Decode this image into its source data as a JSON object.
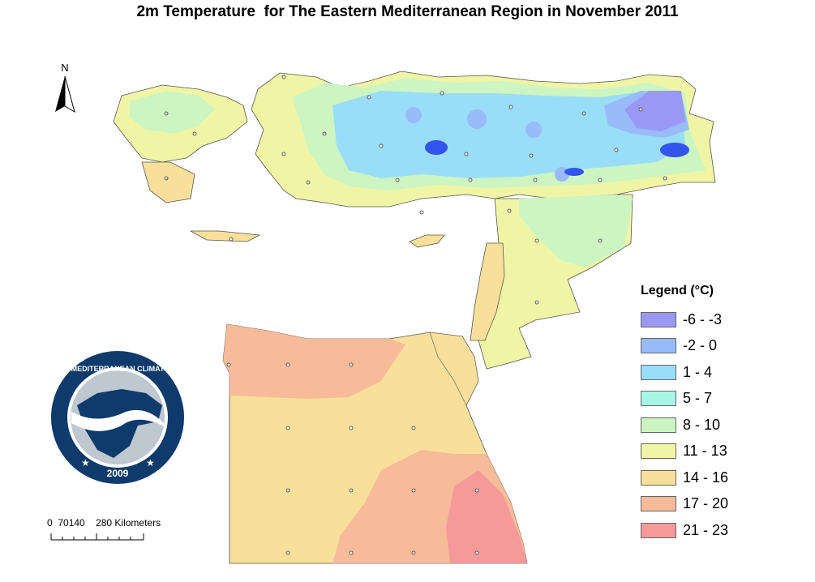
{
  "title": "2m Temperature  for The Eastern Mediterranean Region in November 2011",
  "north_arrow": {
    "label": "N",
    "icon": "north-arrow-icon"
  },
  "scale_bar": {
    "text": "0  70140    280 Kilometers"
  },
  "legend": {
    "title": "Legend (°C)",
    "items": [
      {
        "label": "-6 - -3",
        "color": "#9999f5"
      },
      {
        "label": "-2 - 0",
        "color": "#99bbf8"
      },
      {
        "label": "1 - 4",
        "color": "#99ddf8"
      },
      {
        "label": "5 - 7",
        "color": "#a6f5e6"
      },
      {
        "label": "8 - 10",
        "color": "#ccf5c2"
      },
      {
        "label": "11 - 13",
        "color": "#f0f5a6"
      },
      {
        "label": "14 - 16",
        "color": "#f8e09a"
      },
      {
        "label": "17 - 20",
        "color": "#f8bb99"
      },
      {
        "label": "21 - 23",
        "color": "#f59999"
      }
    ]
  },
  "logo": {
    "name": "EASTERN MEDITERRANEAN CLIMATE CENTRE",
    "year": "2009"
  }
}
